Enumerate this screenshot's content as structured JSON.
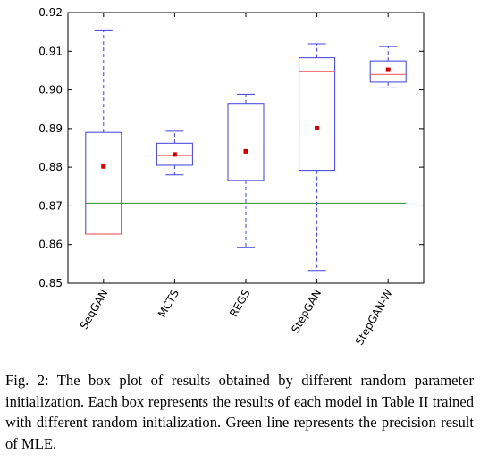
{
  "chart_data": {
    "type": "box",
    "title": "",
    "xlabel": "",
    "ylabel": "",
    "ylim": [
      0.85,
      0.92
    ],
    "yticks": [
      "0.85",
      "0.86",
      "0.87",
      "0.88",
      "0.89",
      "0.90",
      "0.91",
      "0.92"
    ],
    "ytick_values": [
      0.85,
      0.86,
      0.87,
      0.88,
      0.89,
      0.9,
      0.91,
      0.92
    ],
    "grid": false,
    "categories": [
      "SeqGAN",
      "MCTS",
      "REGS",
      "StepGAN",
      "StepGAN-W"
    ],
    "boxes": [
      {
        "whisker_low": 0.8627,
        "q1": 0.8627,
        "median": 0.8627,
        "q3": 0.889,
        "whisker_high": 0.9153,
        "mean": 0.8802
      },
      {
        "whisker_low": 0.878,
        "q1": 0.8805,
        "median": 0.883,
        "q3": 0.8862,
        "whisker_high": 0.8893,
        "mean": 0.8833
      },
      {
        "whisker_low": 0.8593,
        "q1": 0.8766,
        "median": 0.894,
        "q3": 0.8965,
        "whisker_high": 0.8989,
        "mean": 0.8841
      },
      {
        "whisker_low": 0.8533,
        "q1": 0.8792,
        "median": 0.9047,
        "q3": 0.9083,
        "whisker_high": 0.9119,
        "mean": 0.8901
      },
      {
        "whisker_low": 0.9005,
        "q1": 0.902,
        "median": 0.904,
        "q3": 0.9075,
        "whisker_high": 0.9112,
        "mean": 0.9052
      }
    ],
    "reference_line": {
      "value": 0.8707,
      "color": "#2e8b2e"
    },
    "colors": {
      "box": "#3f3fdc",
      "median": "#e85050",
      "mean": "#cc0000",
      "reference": "#2e8b2e"
    }
  },
  "caption": "Fig. 2: The box plot of results obtained by different random parameter initialization. Each box represents the results of each model in Table II trained with different random initialization. Green line represents the precision result of MLE."
}
